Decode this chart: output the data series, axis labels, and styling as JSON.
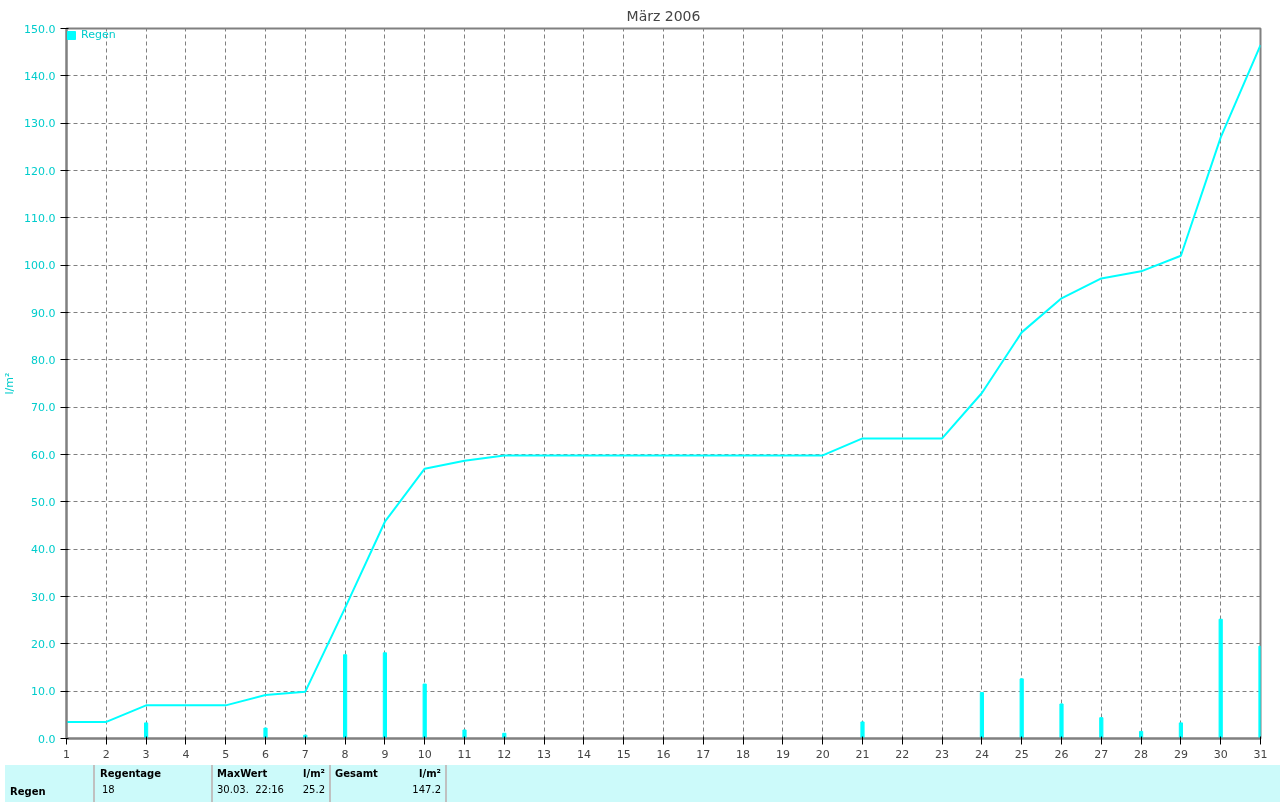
{
  "chart_data": {
    "type": "bar",
    "title": "März 2006",
    "ylabel": "l/m²",
    "x": [
      1,
      2,
      3,
      4,
      5,
      6,
      7,
      8,
      9,
      10,
      11,
      12,
      13,
      14,
      15,
      16,
      17,
      18,
      19,
      20,
      21,
      22,
      23,
      24,
      25,
      26,
      27,
      28,
      29,
      30,
      31
    ],
    "series": [
      {
        "name": "Regen",
        "color": "#00ffff",
        "values": [
          null,
          0,
          3.3,
          0,
          0,
          2.2,
          0.7,
          17.7,
          18.1,
          11.5,
          1.8,
          1.1,
          0,
          0,
          0,
          0,
          0,
          0,
          0,
          0,
          3.5,
          0,
          0,
          9.7,
          12.6,
          7.3,
          4.4,
          1.5,
          3.3,
          25.2,
          19.5
        ]
      },
      {
        "type": "line",
        "color": "#00ffff",
        "values": [
          3.5,
          3.5,
          7,
          7,
          7,
          9.2,
          9.9,
          27.6,
          45.8,
          57,
          58.7,
          59.8,
          59.8,
          59.8,
          59.8,
          59.8,
          59.8,
          59.8,
          59.8,
          59.8,
          63.4,
          63.4,
          63.4,
          73,
          85.8,
          93,
          97.2,
          98.7,
          102,
          127,
          146.5
        ]
      }
    ],
    "xlim": [
      1,
      31
    ],
    "xticks": [
      1,
      2,
      3,
      4,
      5,
      6,
      7,
      8,
      9,
      10,
      11,
      12,
      13,
      14,
      15,
      16,
      17,
      18,
      19,
      20,
      21,
      22,
      23,
      24,
      25,
      26,
      27,
      28,
      29,
      30,
      31
    ],
    "ylim": [
      0,
      150
    ],
    "yticks": [
      {
        "value": 0,
        "label": "0.0"
      },
      {
        "value": 10,
        "label": "10.0"
      },
      {
        "value": 20,
        "label": "20.0"
      },
      {
        "value": 30,
        "label": "30.0"
      },
      {
        "value": 40,
        "label": "40.0"
      },
      {
        "value": 50,
        "label": "50.0"
      },
      {
        "value": 60,
        "label": "60.0"
      },
      {
        "value": 70,
        "label": "70.0"
      },
      {
        "value": 80,
        "label": "80.0"
      },
      {
        "value": 90,
        "label": "90.0"
      },
      {
        "value": 100,
        "label": "100.0"
      },
      {
        "value": 110,
        "label": "110.0"
      },
      {
        "value": 120,
        "label": "120.0"
      },
      {
        "value": 130,
        "label": "130.0"
      },
      {
        "value": 140,
        "label": "140.0"
      },
      {
        "value": 150,
        "label": "150.0"
      }
    ],
    "grid": true,
    "legend": "top left",
    "line_style": "solid",
    "marker": "none",
    "annotations": [
      "Regen",
      "Regentage",
      "18",
      "MaxWert",
      "l/m²",
      "30.03.  22:16",
      "25.2",
      "Gesamt",
      "l/m²",
      "147.2"
    ]
  }
}
